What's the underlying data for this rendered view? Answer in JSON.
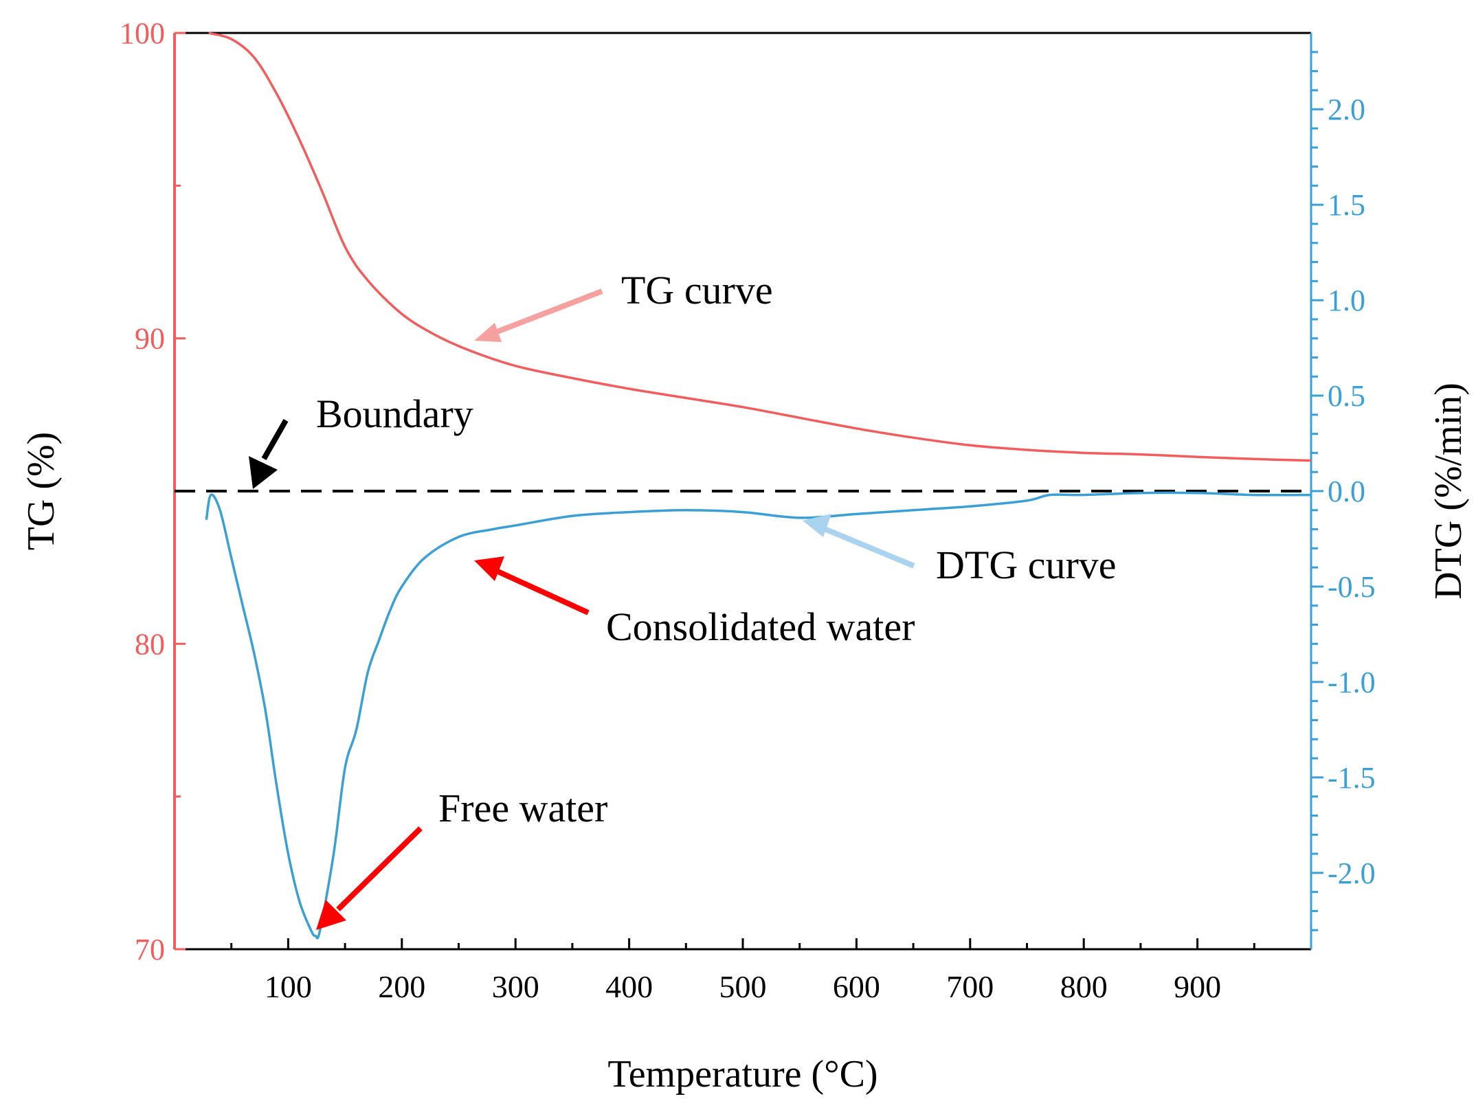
{
  "chart_data": {
    "type": "line",
    "title": "",
    "xlabel": "Temperature (°C)",
    "ylabel_left": "TG (%)",
    "ylabel_right": "DTG (%/min)",
    "xlim": [
      0,
      1000
    ],
    "x_ticks": [
      100,
      200,
      300,
      400,
      500,
      600,
      700,
      800,
      900
    ],
    "ylim_left": [
      70,
      100
    ],
    "y_ticks_left": [
      70,
      80,
      90,
      100
    ],
    "ylim_right": [
      -2.4,
      2.4
    ],
    "y_ticks_right": [
      2.0,
      1.5,
      1.0,
      0.5,
      0.0,
      -0.5,
      -1.0,
      -1.5,
      -2.0
    ],
    "y_ticks_right_labels": [
      "2.0",
      "1.5",
      "1.0",
      "0.5",
      "0.0",
      "-0.5",
      "-1.0",
      "-1.5",
      "-2.0"
    ],
    "colors": {
      "tg": "#f25c5c",
      "dtg": "#3a9fd6",
      "tg_arrow": "#f7a0a0",
      "dtg_arrow": "#a9d3ee",
      "red_arrow": "#ff0000",
      "axis": "#000000"
    },
    "series": [
      {
        "name": "TG curve",
        "axis": "left",
        "x": [
          30,
          50,
          70,
          90,
          110,
          130,
          150,
          170,
          200,
          230,
          260,
          300,
          350,
          400,
          450,
          500,
          550,
          600,
          650,
          700,
          750,
          800,
          850,
          900,
          950,
          1000
        ],
        "values": [
          100,
          99.8,
          99.2,
          98.0,
          96.5,
          94.8,
          93.0,
          91.9,
          90.8,
          90.1,
          89.6,
          89.1,
          88.7,
          88.35,
          88.05,
          87.75,
          87.4,
          87.05,
          86.75,
          86.5,
          86.35,
          86.25,
          86.2,
          86.12,
          86.05,
          86.0
        ]
      },
      {
        "name": "DTG curve",
        "axis": "right",
        "x": [
          28,
          32,
          40,
          50,
          60,
          70,
          80,
          90,
          100,
          110,
          120,
          124,
          128,
          140,
          150,
          160,
          170,
          180,
          190,
          200,
          220,
          250,
          280,
          300,
          350,
          400,
          450,
          500,
          550,
          600,
          650,
          700,
          750,
          770,
          800,
          850,
          900,
          950,
          1000
        ],
        "values": [
          -0.15,
          -0.02,
          -0.1,
          -0.35,
          -0.6,
          -0.85,
          -1.15,
          -1.55,
          -1.9,
          -2.15,
          -2.3,
          -2.33,
          -2.3,
          -1.9,
          -1.45,
          -1.25,
          -0.95,
          -0.78,
          -0.62,
          -0.5,
          -0.35,
          -0.24,
          -0.2,
          -0.18,
          -0.13,
          -0.11,
          -0.1,
          -0.11,
          -0.14,
          -0.12,
          -0.1,
          -0.08,
          -0.05,
          -0.02,
          -0.02,
          -0.01,
          -0.01,
          -0.02,
          -0.02
        ]
      }
    ],
    "boundary_line": {
      "name": "Boundary",
      "axis": "right",
      "y": 0.0
    },
    "annotations": {
      "tg_curve": "TG curve",
      "boundary": "Boundary",
      "dtg_curve": "DTG curve",
      "consolidated_water": "Consolidated water",
      "free_water": "Free water"
    }
  }
}
